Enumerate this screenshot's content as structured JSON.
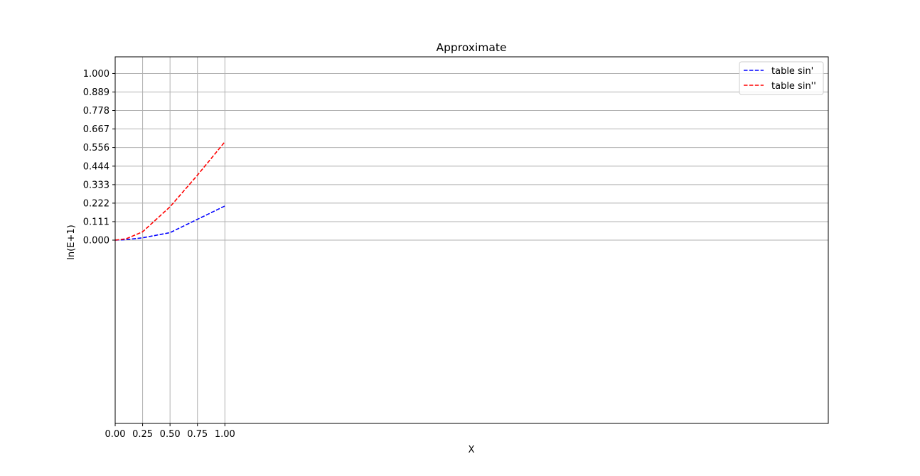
{
  "chart_data": {
    "type": "line",
    "title": "Approximate",
    "xlabel": "X",
    "ylabel": "ln(E+1)",
    "x_ticks": [
      "0.00",
      "0.25",
      "0.50",
      "0.75",
      "1.00"
    ],
    "x_tick_values": [
      0,
      0.25,
      0.5,
      0.75,
      1.0
    ],
    "y_ticks": [
      "0.000",
      "0.111",
      "0.222",
      "0.333",
      "0.444",
      "0.556",
      "0.667",
      "0.778",
      "0.889",
      "1.000"
    ],
    "y_tick_values": [
      0,
      0.111,
      0.222,
      0.333,
      0.444,
      0.556,
      0.667,
      0.778,
      0.889,
      1.0
    ],
    "xlim": [
      0,
      6.5
    ],
    "ylim": [
      -1.1,
      1.1
    ],
    "grid": true,
    "legend_position": "top-right",
    "series": [
      {
        "name": "table sin'",
        "color": "#0000ff",
        "line_style": "dashed",
        "x": [
          0,
          0.1,
          0.25,
          0.5,
          0.75,
          1.0
        ],
        "y": [
          0,
          0.003,
          0.014,
          0.045,
          0.125,
          0.205
        ]
      },
      {
        "name": "table sin''",
        "color": "#ff0000",
        "line_style": "dashed",
        "x": [
          0,
          0.1,
          0.25,
          0.5,
          0.75,
          1.0
        ],
        "y": [
          0,
          0.008,
          0.05,
          0.2,
          0.39,
          0.59
        ]
      }
    ]
  }
}
